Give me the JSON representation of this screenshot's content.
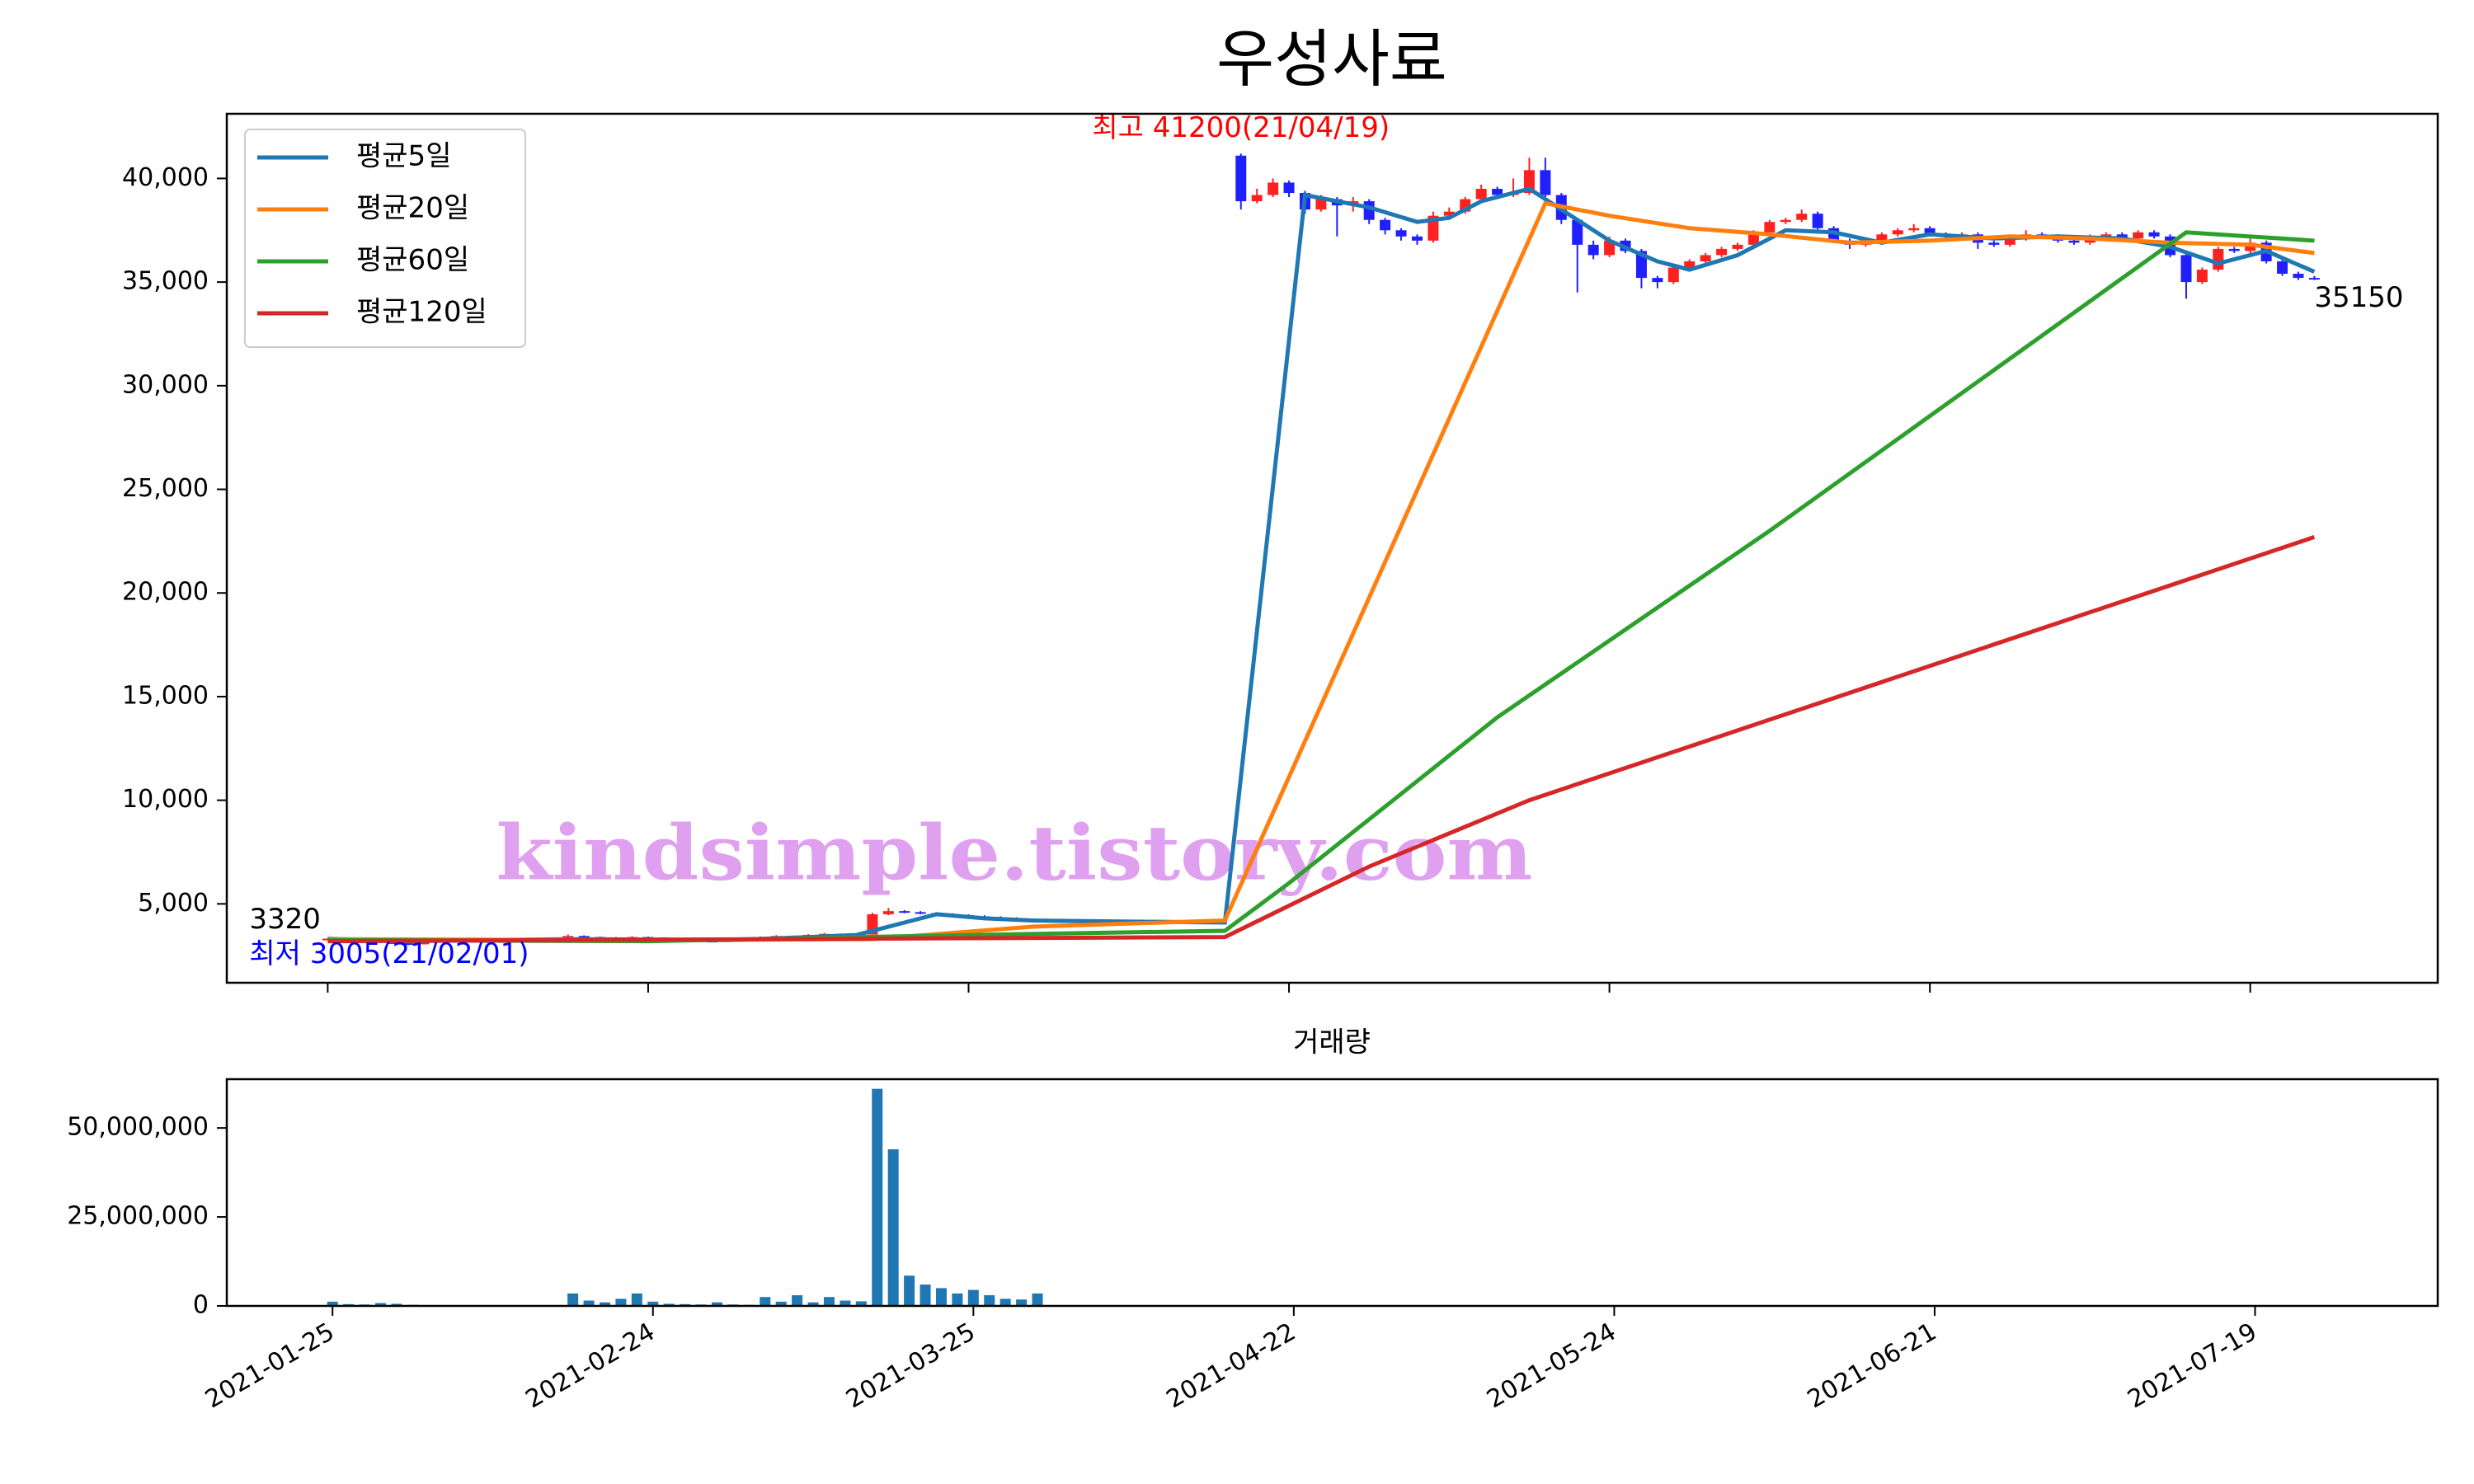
{
  "chart_data": [
    {
      "type": "candlestick",
      "title": "우성사료",
      "x": [
        0,
        1,
        2,
        3,
        4,
        5,
        6,
        7,
        8,
        9,
        10,
        11,
        12,
        13,
        14,
        15,
        16,
        17,
        18,
        19,
        20,
        21,
        22,
        23,
        24,
        25,
        26,
        27,
        28,
        29,
        30,
        31,
        32,
        33,
        34,
        35,
        36,
        37,
        38,
        39,
        40,
        41,
        42,
        43,
        44,
        57,
        58,
        59,
        60,
        61,
        62,
        63,
        64,
        65,
        66,
        67,
        68,
        69,
        70,
        71,
        72,
        73,
        74,
        75,
        76,
        77,
        78,
        79,
        80,
        81,
        82,
        83,
        84,
        85,
        86,
        87,
        88,
        89,
        90,
        91,
        92,
        93,
        94,
        95,
        96,
        97,
        98,
        99,
        100,
        101,
        102,
        103,
        104,
        105,
        106,
        107,
        108,
        109,
        110,
        111,
        112,
        113,
        114,
        115,
        116,
        117,
        118,
        119,
        120,
        121,
        122,
        123,
        124
      ],
      "ohlc": [
        [
          3300,
          3350,
          3250,
          3320
        ],
        [
          3320,
          3340,
          3230,
          3250
        ],
        [
          3250,
          3270,
          3180,
          3200
        ],
        [
          3200,
          3220,
          3130,
          3150
        ],
        [
          3150,
          3170,
          3080,
          3100
        ],
        [
          3100,
          3120,
          3005,
          3050
        ],
        [
          3050,
          3180,
          3040,
          3150
        ],
        [
          3150,
          3230,
          3140,
          3200
        ],
        [
          3200,
          3280,
          3190,
          3250
        ],
        [
          3250,
          3260,
          3180,
          3200
        ],
        [
          3200,
          3220,
          3160,
          3180
        ],
        [
          3180,
          3230,
          3170,
          3200
        ],
        [
          3200,
          3250,
          3190,
          3220
        ],
        [
          3220,
          3240,
          3180,
          3200
        ],
        [
          3200,
          3280,
          3190,
          3250
        ],
        [
          3250,
          3520,
          3240,
          3450
        ],
        [
          3450,
          3480,
          3380,
          3400
        ],
        [
          3400,
          3420,
          3360,
          3380
        ],
        [
          3380,
          3400,
          3330,
          3350
        ],
        [
          3350,
          3440,
          3340,
          3400
        ],
        [
          3400,
          3420,
          3360,
          3380
        ],
        [
          3380,
          3390,
          3280,
          3300
        ],
        [
          3300,
          3320,
          3230,
          3250
        ],
        [
          3250,
          3270,
          3200,
          3220
        ],
        [
          3220,
          3240,
          3180,
          3200
        ],
        [
          3200,
          3280,
          3190,
          3250
        ],
        [
          3250,
          3330,
          3240,
          3300
        ],
        [
          3300,
          3430,
          3290,
          3400
        ],
        [
          3400,
          3490,
          3390,
          3450
        ],
        [
          3450,
          3470,
          3400,
          3420
        ],
        [
          3420,
          3540,
          3410,
          3500
        ],
        [
          3500,
          3600,
          3490,
          3550
        ],
        [
          3550,
          3570,
          3480,
          3500
        ],
        [
          3500,
          3560,
          3490,
          3520
        ],
        [
          3520,
          4570,
          3520,
          4500
        ],
        [
          4500,
          4800,
          4450,
          4650
        ],
        [
          4650,
          4700,
          4550,
          4600
        ],
        [
          4600,
          4650,
          4500,
          4550
        ],
        [
          4550,
          4600,
          4450,
          4500
        ],
        [
          4500,
          4550,
          4400,
          4450
        ],
        [
          4450,
          4500,
          4350,
          4400
        ],
        [
          4400,
          4450,
          4300,
          4350
        ],
        [
          4350,
          4400,
          4250,
          4300
        ],
        [
          4300,
          4350,
          4200,
          4250
        ],
        [
          4250,
          4300,
          4150,
          4200
        ],
        [
          41100,
          41200,
          38500,
          38900
        ],
        [
          38900,
          39500,
          38800,
          39200
        ],
        [
          39200,
          40000,
          39100,
          39800
        ],
        [
          39800,
          39900,
          39100,
          39300
        ],
        [
          39300,
          39400,
          38300,
          38500
        ],
        [
          38500,
          39200,
          38400,
          39000
        ],
        [
          39000,
          39100,
          37200,
          38700
        ],
        [
          38700,
          39100,
          38400,
          38900
        ],
        [
          38900,
          39000,
          37800,
          38000
        ],
        [
          38000,
          38100,
          37300,
          37500
        ],
        [
          37500,
          37600,
          37000,
          37200
        ],
        [
          37200,
          37300,
          36800,
          37000
        ],
        [
          37000,
          38400,
          36900,
          38200
        ],
        [
          38200,
          38600,
          38100,
          38400
        ],
        [
          38400,
          39100,
          38300,
          39000
        ],
        [
          39000,
          39700,
          38900,
          39500
        ],
        [
          39500,
          39600,
          39000,
          39200
        ],
        [
          39200,
          40000,
          39100,
          39300
        ],
        [
          39300,
          41000,
          39200,
          40400
        ],
        [
          40400,
          41000,
          38900,
          39200
        ],
        [
          39200,
          39300,
          37800,
          38000
        ],
        [
          38000,
          38100,
          34500,
          36800
        ],
        [
          36800,
          37000,
          36100,
          36300
        ],
        [
          36300,
          37200,
          36200,
          37000
        ],
        [
          37000,
          37100,
          36400,
          36500
        ],
        [
          36500,
          36600,
          34700,
          35200
        ],
        [
          35200,
          35300,
          34700,
          35000
        ],
        [
          35000,
          35800,
          34900,
          35700
        ],
        [
          35700,
          36100,
          35600,
          36000
        ],
        [
          36000,
          36400,
          35900,
          36300
        ],
        [
          36300,
          36700,
          36200,
          36600
        ],
        [
          36600,
          36900,
          36500,
          36800
        ],
        [
          36800,
          37500,
          36700,
          37400
        ],
        [
          37400,
          38000,
          37300,
          37900
        ],
        [
          37900,
          38100,
          37800,
          38000
        ],
        [
          38000,
          38500,
          37900,
          38300
        ],
        [
          38300,
          38400,
          37500,
          37600
        ],
        [
          37600,
          37700,
          36900,
          37000
        ],
        [
          37000,
          37100,
          36600,
          36800
        ],
        [
          36800,
          37000,
          36700,
          36900
        ],
        [
          36900,
          37400,
          36800,
          37300
        ],
        [
          37300,
          37600,
          37200,
          37500
        ],
        [
          37500,
          37800,
          37400,
          37600
        ],
        [
          37600,
          37700,
          37200,
          37300
        ],
        [
          37300,
          37400,
          37100,
          37200
        ],
        [
          37200,
          37400,
          37100,
          37300
        ],
        [
          37300,
          37400,
          36600,
          36900
        ],
        [
          36900,
          37000,
          36700,
          36800
        ],
        [
          36800,
          37200,
          36700,
          37100
        ],
        [
          37100,
          37500,
          37000,
          37300
        ],
        [
          37300,
          37400,
          37100,
          37200
        ],
        [
          37200,
          37300,
          36900,
          37000
        ],
        [
          37000,
          37100,
          36800,
          36900
        ],
        [
          36900,
          37300,
          36800,
          37200
        ],
        [
          37200,
          37400,
          37100,
          37300
        ],
        [
          37300,
          37400,
          37000,
          37100
        ],
        [
          37100,
          37500,
          37000,
          37400
        ],
        [
          37400,
          37500,
          37100,
          37200
        ],
        [
          37200,
          37300,
          36200,
          36300
        ],
        [
          36300,
          36400,
          34200,
          35000
        ],
        [
          35000,
          35700,
          34900,
          35600
        ],
        [
          35600,
          36700,
          35500,
          36600
        ],
        [
          36600,
          36700,
          36400,
          36500
        ],
        [
          36500,
          37100,
          36400,
          36900
        ],
        [
          36900,
          37000,
          35900,
          36000
        ],
        [
          36000,
          36100,
          35300,
          35400
        ],
        [
          35400,
          35500,
          35100,
          35200
        ],
        [
          35200,
          35300,
          35100,
          35150
        ]
      ],
      "up_color": "#ff2020",
      "down_color": "#2020ff",
      "series": [
        {
          "name": "평균5일",
          "color": "#1f77b4",
          "x": [
            0,
            5,
            15,
            25,
            30,
            33,
            36,
            38,
            41,
            44,
            56,
            61,
            65,
            68,
            70,
            72,
            75,
            77,
            80,
            83,
            85,
            88,
            91,
            94,
            97,
            100,
            104,
            108,
            112,
            115,
            118,
            121,
            124
          ],
          "values": [
            3320,
            3200,
            3300,
            3250,
            3400,
            3500,
            4100,
            4500,
            4300,
            4200,
            4100,
            39200,
            38600,
            37900,
            38100,
            38900,
            39500,
            38500,
            37000,
            36000,
            35600,
            36300,
            37500,
            37400,
            36900,
            37300,
            37100,
            37200,
            37100,
            36700,
            35900,
            36500,
            35500
          ]
        },
        {
          "name": "평균20일",
          "color": "#ff7f0e",
          "x": [
            0,
            20,
            34,
            44,
            56,
            76,
            80,
            85,
            90,
            95,
            100,
            105,
            110,
            115,
            120,
            124
          ],
          "values": [
            3300,
            3250,
            3300,
            3900,
            4200,
            38800,
            38200,
            37600,
            37300,
            36900,
            37000,
            37200,
            37100,
            36900,
            36800,
            36400
          ]
        },
        {
          "name": "평균60일",
          "color": "#2ca02c",
          "x": [
            0,
            20,
            40,
            56,
            60,
            73,
            90,
            116,
            124
          ],
          "values": [
            3250,
            3200,
            3500,
            3700,
            6000,
            14000,
            23000,
            37400,
            37000
          ]
        },
        {
          "name": "평균120일",
          "color": "#d62728",
          "x": [
            0,
            56,
            65,
            75,
            124
          ],
          "values": [
            3200,
            3400,
            6800,
            10000,
            22700
          ]
        }
      ],
      "xlim": [
        -6.3,
        131.7
      ],
      "ylim": [
        1195,
        43120
      ],
      "xticks": [
        0,
        20,
        40,
        60,
        80,
        100,
        120
      ],
      "yticks": [
        {
          "value": 5000,
          "label": "5,000"
        },
        {
          "value": 10000,
          "label": "10,000"
        },
        {
          "value": 15000,
          "label": "15,000"
        },
        {
          "value": 20000,
          "label": "20,000"
        },
        {
          "value": 25000,
          "label": "25,000"
        },
        {
          "value": 30000,
          "label": "30,000"
        },
        {
          "value": 35000,
          "label": "35,000"
        },
        {
          "value": 40000,
          "label": "40,000"
        }
      ],
      "legend": "upper left",
      "max_label": "최고 41200(21/04/19)",
      "min_label": "최저 3005(21/02/01)",
      "first_label": "3320",
      "last_label": "35150",
      "watermark": "kindsimple.tistory.com"
    },
    {
      "type": "bar",
      "title": "거래량",
      "color": "#1f77b4",
      "x": [
        0,
        1,
        2,
        3,
        4,
        5,
        6,
        7,
        8,
        9,
        10,
        11,
        12,
        13,
        14,
        15,
        16,
        17,
        18,
        19,
        20,
        21,
        22,
        23,
        24,
        25,
        26,
        27,
        28,
        29,
        30,
        31,
        32,
        33,
        34,
        35,
        36,
        37,
        38,
        39,
        40,
        41,
        42,
        43,
        44
      ],
      "values": [
        1200000,
        500000,
        400000,
        800000,
        600000,
        300000,
        200000,
        200000,
        200000,
        200000,
        200000,
        200000,
        200000,
        200000,
        200000,
        3500000,
        1500000,
        1000000,
        2000000,
        3500000,
        1200000,
        600000,
        500000,
        400000,
        1000000,
        400000,
        300000,
        2500000,
        1200000,
        3000000,
        1000000,
        2500000,
        1500000,
        1300000,
        61000000,
        44000000,
        8500000,
        6000000,
        5000000,
        3500000,
        4500000,
        3000000,
        2000000,
        1800000,
        3500000
      ],
      "xlim": [
        -6.6,
        131.4
      ],
      "ylim": [
        0,
        63700000
      ],
      "xticks": [
        {
          "value": 0,
          "label": "2021-01-25"
        },
        {
          "value": 20,
          "label": "2021-02-24"
        },
        {
          "value": 40,
          "label": "2021-03-25"
        },
        {
          "value": 60,
          "label": "2021-04-22"
        },
        {
          "value": 80,
          "label": "2021-05-24"
        },
        {
          "value": 100,
          "label": "2021-06-21"
        },
        {
          "value": 120,
          "label": "2021-07-19"
        }
      ],
      "yticks": [
        0,
        {
          "value": 25000000,
          "label": "25,000,000"
        },
        {
          "value": 50000000,
          "label": "50,000,000"
        }
      ]
    }
  ]
}
